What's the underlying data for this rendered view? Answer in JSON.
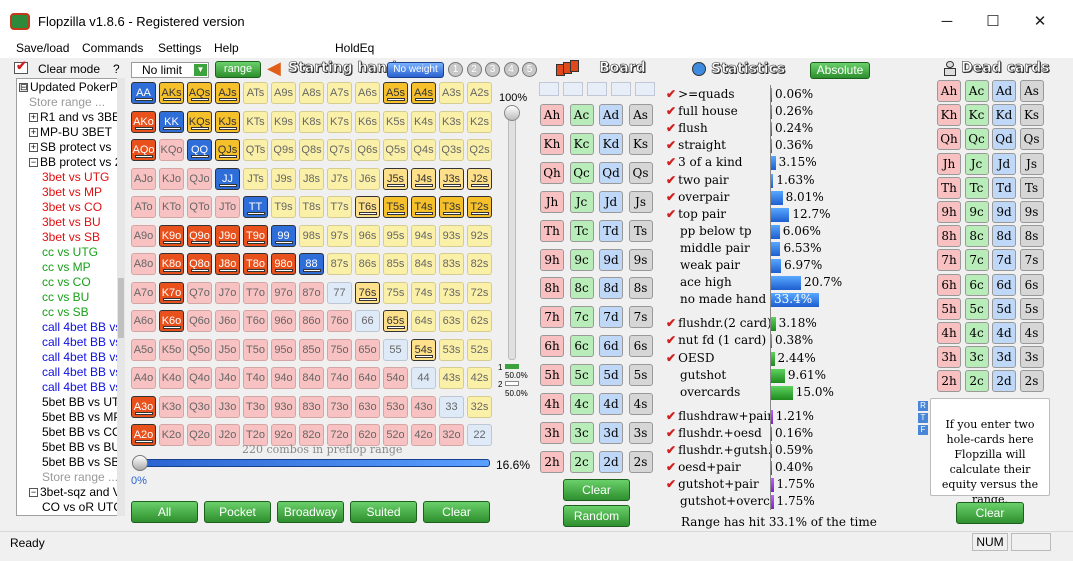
{
  "window": {
    "title": "Flopzilla v1.8.6 - Registered version",
    "minimize": "─",
    "maximize": "☐",
    "close": "✕"
  },
  "menu": {
    "items": [
      "Save/load",
      "Commands",
      "Settings",
      "Help",
      "HoldEq"
    ]
  },
  "left": {
    "clear_mode": "Clear mode",
    "help": "?",
    "tree": [
      {
        "label": "Updated PokerPr",
        "toggle": "⊟",
        "cls": "",
        "ind": 0
      },
      {
        "label": "Store range ...",
        "toggle": "",
        "cls": "gry",
        "ind": 1
      },
      {
        "label": "R1 and vs 3BE",
        "toggle": "+",
        "cls": "",
        "ind": 1
      },
      {
        "label": "MP-BU 3BET",
        "toggle": "+",
        "cls": "",
        "ind": 1
      },
      {
        "label": "SB protect vs",
        "toggle": "+",
        "cls": "",
        "ind": 1
      },
      {
        "label": "BB protect vs 2",
        "toggle": "−",
        "cls": "",
        "ind": 1
      },
      {
        "label": "3bet vs UTG",
        "toggle": "",
        "cls": "red",
        "ind": 2
      },
      {
        "label": "3bet vs MP",
        "toggle": "",
        "cls": "red",
        "ind": 2
      },
      {
        "label": "3bet vs CO",
        "toggle": "",
        "cls": "red",
        "ind": 2
      },
      {
        "label": "3bet vs BU",
        "toggle": "",
        "cls": "red",
        "ind": 2
      },
      {
        "label": "3bet vs SB",
        "toggle": "",
        "cls": "red",
        "ind": 2
      },
      {
        "label": "cc vs UTG",
        "toggle": "",
        "cls": "grn",
        "ind": 2
      },
      {
        "label": "cc vs MP",
        "toggle": "",
        "cls": "grn",
        "ind": 2
      },
      {
        "label": "cc vs CO",
        "toggle": "",
        "cls": "grn",
        "ind": 2
      },
      {
        "label": "cc vs BU",
        "toggle": "",
        "cls": "grn",
        "ind": 2
      },
      {
        "label": "cc vs SB",
        "toggle": "",
        "cls": "grn",
        "ind": 2
      },
      {
        "label": "call 4bet BB vs",
        "toggle": "",
        "cls": "blu",
        "ind": 2
      },
      {
        "label": "call 4bet BB vs",
        "toggle": "",
        "cls": "blu",
        "ind": 2
      },
      {
        "label": "call 4bet BB vs",
        "toggle": "",
        "cls": "blu",
        "ind": 2
      },
      {
        "label": "call 4bet BB vs",
        "toggle": "",
        "cls": "blu",
        "ind": 2
      },
      {
        "label": "call 4bet BB vs",
        "toggle": "",
        "cls": "blu",
        "ind": 2
      },
      {
        "label": "5bet BB vs UTC",
        "toggle": "",
        "cls": "",
        "ind": 2
      },
      {
        "label": "5bet BB vs MP",
        "toggle": "",
        "cls": "",
        "ind": 2
      },
      {
        "label": "5bet BB vs CO",
        "toggle": "",
        "cls": "",
        "ind": 2
      },
      {
        "label": "5bet BB vs BU",
        "toggle": "",
        "cls": "",
        "ind": 2
      },
      {
        "label": "5bet BB vs SB",
        "toggle": "",
        "cls": "",
        "ind": 2
      },
      {
        "label": "Store range ...",
        "toggle": "",
        "cls": "gry",
        "ind": 2
      },
      {
        "label": "3bet-sqz and V",
        "toggle": "−",
        "cls": "",
        "ind": 1
      },
      {
        "label": "CO vs oR UTG",
        "toggle": "",
        "cls": "",
        "ind": 2
      }
    ]
  },
  "range_toolbar": {
    "limit": "No limit",
    "range_btn": "range",
    "starting_hand": "Starting hand",
    "no_weight": "No weight",
    "weights": [
      "1",
      "2",
      "3",
      "4",
      "5"
    ]
  },
  "grid": {
    "ranks": [
      "A",
      "K",
      "Q",
      "J",
      "T",
      "9",
      "8",
      "7",
      "6",
      "5",
      "4",
      "3",
      "2"
    ],
    "combos_text": "220 combos in preflop range",
    "pct_top": "100%",
    "pct_bottom": "16.6%",
    "slider_zero": "0%",
    "mini": [
      {
        "label": "1",
        "value": "50.0%"
      },
      {
        "label": "2",
        "value": "50.0%"
      }
    ],
    "special": {
      "AA": "cdb",
      "AKs": "cyb",
      "AQs": "cyb",
      "AJs": "cyb",
      "A5s": "cyb",
      "A4s": "cyb",
      "AKo": "cr",
      "KK": "cdb",
      "KQs": "cyb",
      "KJs": "cyb",
      "AQo": "cr",
      "QQ": "cdb",
      "QJs": "cyb",
      "JJ": "cdb",
      "J5s": "cs",
      "J4s": "cs",
      "J3s": "cs",
      "J2s": "cs",
      "TT": "cdb",
      "T6s": "cs",
      "T5s": "cyb",
      "T4s": "cyb",
      "T3s": "cyb",
      "T2s": "cyb",
      "K9o": "cr",
      "Q9o": "cr",
      "J9o": "cr",
      "T9o": "cr",
      "99": "cdb",
      "K8o": "cr",
      "Q8o": "cr",
      "J8o": "cr",
      "T8o": "cr",
      "98o": "cr",
      "88": "cdb",
      "K7o": "cr",
      "76s": "cs",
      "K6o": "cr",
      "65s": "cs",
      "54s": "cs",
      "A3o": "cr",
      "A2o": "cr"
    }
  },
  "board": {
    "title": "Board",
    "cards": [
      [
        "Ah",
        "Ac",
        "Ad",
        "As"
      ],
      [
        "Kh",
        "Kc",
        "Kd",
        "Ks"
      ],
      [
        "Qh",
        "Qc",
        "Qd",
        "Qs"
      ],
      [
        "Jh",
        "Jc",
        "Jd",
        "Js"
      ],
      [
        "Th",
        "Tc",
        "Td",
        "Ts"
      ],
      [
        "9h",
        "9c",
        "9d",
        "9s"
      ],
      [
        "8h",
        "8c",
        "8d",
        "8s"
      ],
      [
        "7h",
        "7c",
        "7d",
        "7s"
      ],
      [
        "6h",
        "6c",
        "6d",
        "6s"
      ],
      [
        "5h",
        "5c",
        "5d",
        "5s"
      ],
      [
        "4h",
        "4c",
        "4d",
        "4s"
      ],
      [
        "3h",
        "3c",
        "3d",
        "3s"
      ],
      [
        "2h",
        "2c",
        "2d",
        "2s"
      ]
    ],
    "clear": "Clear",
    "random": "Random"
  },
  "statistics": {
    "title": "Statistics",
    "absolute": "Absolute",
    "rows": [
      {
        "label": ">=quads",
        "value": "0.06%",
        "pct": 0.06,
        "check": true,
        "color": "b"
      },
      {
        "label": "full house",
        "value": "0.26%",
        "pct": 0.26,
        "check": true,
        "color": "b"
      },
      {
        "label": "flush",
        "value": "0.24%",
        "pct": 0.24,
        "check": true,
        "color": "b"
      },
      {
        "label": "straight",
        "value": "0.36%",
        "pct": 0.36,
        "check": true,
        "color": "b"
      },
      {
        "label": "3 of a kind",
        "value": "3.15%",
        "pct": 3.15,
        "check": true,
        "color": "b"
      },
      {
        "label": "two pair",
        "value": "1.63%",
        "pct": 1.63,
        "check": true,
        "color": "b"
      },
      {
        "label": "overpair",
        "value": "8.01%",
        "pct": 8.01,
        "check": true,
        "color": "b"
      },
      {
        "label": "top pair",
        "value": "12.7%",
        "pct": 12.7,
        "check": true,
        "color": "b"
      },
      {
        "label": "pp below tp",
        "value": "6.06%",
        "pct": 6.06,
        "check": false,
        "color": "b"
      },
      {
        "label": "middle pair",
        "value": "6.53%",
        "pct": 6.53,
        "check": false,
        "color": "b"
      },
      {
        "label": "weak pair",
        "value": "6.97%",
        "pct": 6.97,
        "check": false,
        "color": "b"
      },
      {
        "label": "ace high",
        "value": "20.7%",
        "pct": 20.7,
        "check": false,
        "color": "b"
      },
      {
        "label": "no made hand",
        "value": "33.4%",
        "pct": 33.4,
        "check": false,
        "color": "b"
      },
      {
        "label": "flushdr.(2 card)",
        "value": "3.18%",
        "pct": 3.18,
        "check": true,
        "color": "g"
      },
      {
        "label": "nut fd (1 card)",
        "value": "0.38%",
        "pct": 0.38,
        "check": true,
        "color": "g"
      },
      {
        "label": "OESD",
        "value": "2.44%",
        "pct": 2.44,
        "check": true,
        "color": "g"
      },
      {
        "label": "gutshot",
        "value": "9.61%",
        "pct": 9.61,
        "check": false,
        "color": "g"
      },
      {
        "label": "overcards",
        "value": "15.0%",
        "pct": 15.0,
        "check": false,
        "color": "g"
      },
      {
        "label": "flushdraw+pair",
        "value": "1.21%",
        "pct": 1.21,
        "check": true,
        "color": "p"
      },
      {
        "label": "flushdr.+oesd",
        "value": "0.16%",
        "pct": 0.16,
        "check": true,
        "color": "p"
      },
      {
        "label": "flushdr.+gutsh.",
        "value": "0.59%",
        "pct": 0.59,
        "check": true,
        "color": "p"
      },
      {
        "label": "oesd+pair",
        "value": "0.40%",
        "pct": 0.4,
        "check": true,
        "color": "p"
      },
      {
        "label": "gutshot+pair",
        "value": "1.75%",
        "pct": 1.75,
        "check": true,
        "color": "p"
      },
      {
        "label": "gutshot+overc.",
        "value": "1.75%",
        "pct": 1.75,
        "check": false,
        "color": "p"
      }
    ],
    "hit_text": "Range has hit 33.1% of the time"
  },
  "dead": {
    "title": "Dead cards",
    "cards": [
      [
        "Ah",
        "Ac",
        "Ad",
        "As"
      ],
      [
        "Kh",
        "Kc",
        "Kd",
        "Ks"
      ],
      [
        "Qh",
        "Qc",
        "Qd",
        "Qs"
      ],
      [
        "Jh",
        "Jc",
        "Jd",
        "Js"
      ],
      [
        "Th",
        "Tc",
        "Td",
        "Ts"
      ],
      [
        "9h",
        "9c",
        "9d",
        "9s"
      ],
      [
        "8h",
        "8c",
        "8d",
        "8s"
      ],
      [
        "7h",
        "7c",
        "7d",
        "7s"
      ],
      [
        "6h",
        "6c",
        "6d",
        "6s"
      ],
      [
        "5h",
        "5c",
        "5d",
        "5s"
      ],
      [
        "4h",
        "4c",
        "4d",
        "4s"
      ],
      [
        "3h",
        "3c",
        "3d",
        "3s"
      ],
      [
        "2h",
        "2c",
        "2d",
        "2s"
      ]
    ],
    "info": "If you enter two hole-cards here Flopzilla will calculate their equity versus the range.",
    "clear": "Clear",
    "rtf": [
      "R",
      "T",
      "F"
    ]
  },
  "buttons": {
    "all": "All",
    "pocket": "Pocket",
    "broadway": "Broadway",
    "suited": "Suited",
    "clear": "Clear"
  },
  "status": {
    "ready": "Ready",
    "num": "NUM"
  }
}
